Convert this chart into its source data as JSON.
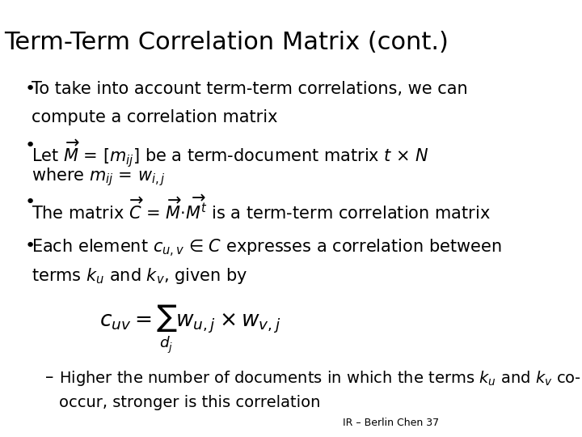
{
  "title": "Term-Term Correlation Matrix (cont.)",
  "background_color": "#ffffff",
  "text_color": "#000000",
  "title_fontsize": 22,
  "body_fontsize": 15,
  "footer_text": "IR – Berlin Chen 37",
  "bullet1_line1": "To take into account term-term correlations, we can",
  "bullet1_line2": "compute a correlation matrix",
  "bullet2_line1": "Let $\\overrightarrow{M}$ = [$m_{ij}$] be a term-document matrix $t$ × $N$",
  "bullet2_line2": "where $m_{ij}$ = $w_{i,j}$",
  "bullet3": "The matrix $\\overrightarrow{C}$ = $\\overrightarrow{M}$$\\cdot$$\\overrightarrow{M^t}$ is a term-term correlation matrix",
  "bullet4_line1": "Each element $c_{u,v}$ ∈ $C$ expresses a correlation between",
  "bullet4_line2": "terms $k_u$ and $k_v$, given by",
  "formula": "$c_{uv} = \\sum_{d_j} w_{u,j} \\times w_{v,j}$",
  "sub_line1": "Higher the number of documents in which the terms $k_u$ and $k_v$ co-",
  "sub_line2": "occur, stronger is this correlation"
}
